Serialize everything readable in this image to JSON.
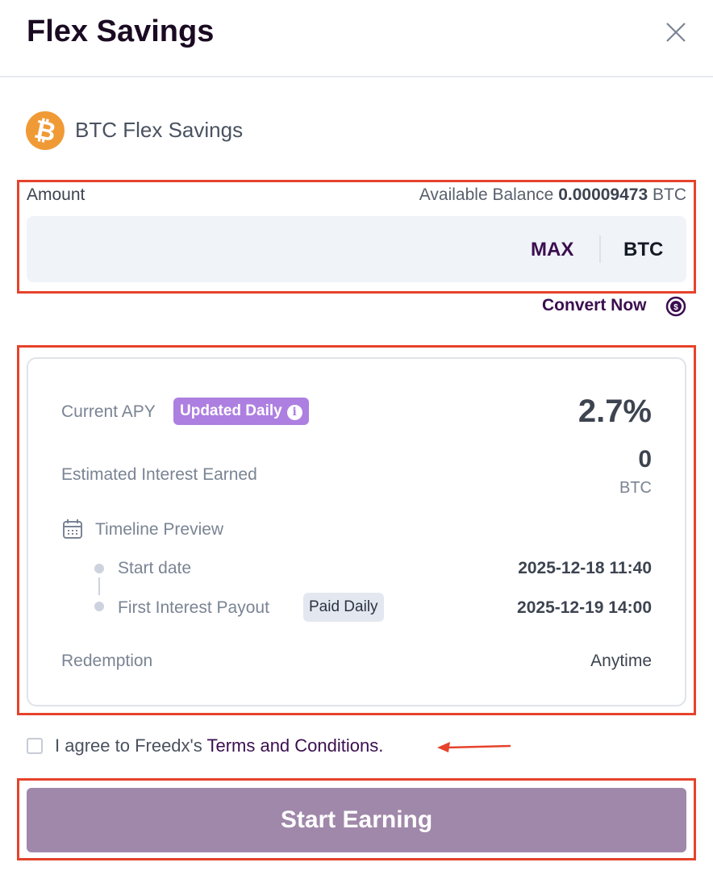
{
  "header": {
    "title": "Flex Savings",
    "close_icon": "close-icon"
  },
  "product": {
    "name": "BTC Flex Savings",
    "coin_icon": "bitcoin-icon",
    "coin_glyph": "₿",
    "coin_color": "#f09a36"
  },
  "amount": {
    "label": "Amount",
    "balance_label": "Available Balance",
    "balance_value": "0.00009473",
    "balance_unit": "BTC",
    "input_value": "",
    "max_label": "MAX",
    "unit": "BTC",
    "convert_label": "Convert Now"
  },
  "details": {
    "apy_label": "Current APY",
    "apy_badge": "Updated Daily",
    "apy_value": "2.7%",
    "interest_label": "Estimated Interest Earned",
    "interest_value": "0",
    "interest_unit": "BTC",
    "timeline_label": "Timeline Preview",
    "start_label": "Start date",
    "start_value": "2025-12-18 11:40",
    "payout_label": "First Interest Payout",
    "payout_badge": "Paid Daily",
    "payout_value": "2025-12-19 14:00",
    "redemption_label": "Redemption",
    "redemption_value": "Anytime"
  },
  "terms": {
    "prefix": "I agree to Freedx's ",
    "link": "Terms and Conditions.",
    "checked": false
  },
  "submit": {
    "label": "Start Earning"
  },
  "colors": {
    "accent": "#3b0e4f",
    "badge": "#ad7fe0",
    "button": "#a088aa",
    "annotation": "#e5432b"
  }
}
